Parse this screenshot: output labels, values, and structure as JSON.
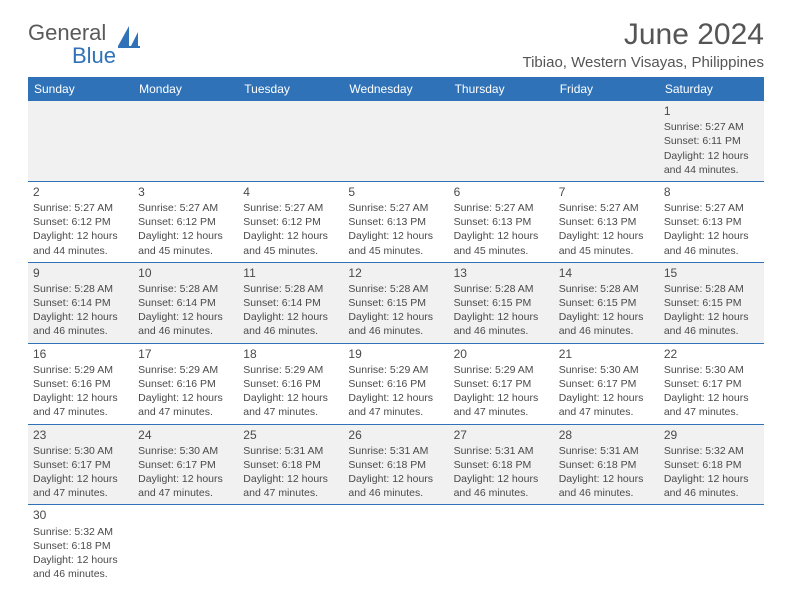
{
  "logo": {
    "word1": "General",
    "word2": "Blue"
  },
  "title": "June 2024",
  "location": "Tibiao, Western Visayas, Philippines",
  "colors": {
    "header_bg": "#2f72b8",
    "header_fg": "#ffffff",
    "row_alt_bg": "#f1f1f1",
    "row_bg": "#ffffff",
    "border": "#2f72b8",
    "text": "#4a4a4a"
  },
  "typography": {
    "title_fontsize": 30,
    "location_fontsize": 15,
    "header_fontsize": 12,
    "daynum_fontsize": 12,
    "body_fontsize": 10.5
  },
  "columns": [
    "Sunday",
    "Monday",
    "Tuesday",
    "Wednesday",
    "Thursday",
    "Friday",
    "Saturday"
  ],
  "weeks": [
    [
      null,
      null,
      null,
      null,
      null,
      null,
      {
        "n": "1",
        "sr": "Sunrise: 5:27 AM",
        "ss": "Sunset: 6:11 PM",
        "d1": "Daylight: 12 hours",
        "d2": "and 44 minutes."
      }
    ],
    [
      {
        "n": "2",
        "sr": "Sunrise: 5:27 AM",
        "ss": "Sunset: 6:12 PM",
        "d1": "Daylight: 12 hours",
        "d2": "and 44 minutes."
      },
      {
        "n": "3",
        "sr": "Sunrise: 5:27 AM",
        "ss": "Sunset: 6:12 PM",
        "d1": "Daylight: 12 hours",
        "d2": "and 45 minutes."
      },
      {
        "n": "4",
        "sr": "Sunrise: 5:27 AM",
        "ss": "Sunset: 6:12 PM",
        "d1": "Daylight: 12 hours",
        "d2": "and 45 minutes."
      },
      {
        "n": "5",
        "sr": "Sunrise: 5:27 AM",
        "ss": "Sunset: 6:13 PM",
        "d1": "Daylight: 12 hours",
        "d2": "and 45 minutes."
      },
      {
        "n": "6",
        "sr": "Sunrise: 5:27 AM",
        "ss": "Sunset: 6:13 PM",
        "d1": "Daylight: 12 hours",
        "d2": "and 45 minutes."
      },
      {
        "n": "7",
        "sr": "Sunrise: 5:27 AM",
        "ss": "Sunset: 6:13 PM",
        "d1": "Daylight: 12 hours",
        "d2": "and 45 minutes."
      },
      {
        "n": "8",
        "sr": "Sunrise: 5:27 AM",
        "ss": "Sunset: 6:13 PM",
        "d1": "Daylight: 12 hours",
        "d2": "and 46 minutes."
      }
    ],
    [
      {
        "n": "9",
        "sr": "Sunrise: 5:28 AM",
        "ss": "Sunset: 6:14 PM",
        "d1": "Daylight: 12 hours",
        "d2": "and 46 minutes."
      },
      {
        "n": "10",
        "sr": "Sunrise: 5:28 AM",
        "ss": "Sunset: 6:14 PM",
        "d1": "Daylight: 12 hours",
        "d2": "and 46 minutes."
      },
      {
        "n": "11",
        "sr": "Sunrise: 5:28 AM",
        "ss": "Sunset: 6:14 PM",
        "d1": "Daylight: 12 hours",
        "d2": "and 46 minutes."
      },
      {
        "n": "12",
        "sr": "Sunrise: 5:28 AM",
        "ss": "Sunset: 6:15 PM",
        "d1": "Daylight: 12 hours",
        "d2": "and 46 minutes."
      },
      {
        "n": "13",
        "sr": "Sunrise: 5:28 AM",
        "ss": "Sunset: 6:15 PM",
        "d1": "Daylight: 12 hours",
        "d2": "and 46 minutes."
      },
      {
        "n": "14",
        "sr": "Sunrise: 5:28 AM",
        "ss": "Sunset: 6:15 PM",
        "d1": "Daylight: 12 hours",
        "d2": "and 46 minutes."
      },
      {
        "n": "15",
        "sr": "Sunrise: 5:28 AM",
        "ss": "Sunset: 6:15 PM",
        "d1": "Daylight: 12 hours",
        "d2": "and 46 minutes."
      }
    ],
    [
      {
        "n": "16",
        "sr": "Sunrise: 5:29 AM",
        "ss": "Sunset: 6:16 PM",
        "d1": "Daylight: 12 hours",
        "d2": "and 47 minutes."
      },
      {
        "n": "17",
        "sr": "Sunrise: 5:29 AM",
        "ss": "Sunset: 6:16 PM",
        "d1": "Daylight: 12 hours",
        "d2": "and 47 minutes."
      },
      {
        "n": "18",
        "sr": "Sunrise: 5:29 AM",
        "ss": "Sunset: 6:16 PM",
        "d1": "Daylight: 12 hours",
        "d2": "and 47 minutes."
      },
      {
        "n": "19",
        "sr": "Sunrise: 5:29 AM",
        "ss": "Sunset: 6:16 PM",
        "d1": "Daylight: 12 hours",
        "d2": "and 47 minutes."
      },
      {
        "n": "20",
        "sr": "Sunrise: 5:29 AM",
        "ss": "Sunset: 6:17 PM",
        "d1": "Daylight: 12 hours",
        "d2": "and 47 minutes."
      },
      {
        "n": "21",
        "sr": "Sunrise: 5:30 AM",
        "ss": "Sunset: 6:17 PM",
        "d1": "Daylight: 12 hours",
        "d2": "and 47 minutes."
      },
      {
        "n": "22",
        "sr": "Sunrise: 5:30 AM",
        "ss": "Sunset: 6:17 PM",
        "d1": "Daylight: 12 hours",
        "d2": "and 47 minutes."
      }
    ],
    [
      {
        "n": "23",
        "sr": "Sunrise: 5:30 AM",
        "ss": "Sunset: 6:17 PM",
        "d1": "Daylight: 12 hours",
        "d2": "and 47 minutes."
      },
      {
        "n": "24",
        "sr": "Sunrise: 5:30 AM",
        "ss": "Sunset: 6:17 PM",
        "d1": "Daylight: 12 hours",
        "d2": "and 47 minutes."
      },
      {
        "n": "25",
        "sr": "Sunrise: 5:31 AM",
        "ss": "Sunset: 6:18 PM",
        "d1": "Daylight: 12 hours",
        "d2": "and 47 minutes."
      },
      {
        "n": "26",
        "sr": "Sunrise: 5:31 AM",
        "ss": "Sunset: 6:18 PM",
        "d1": "Daylight: 12 hours",
        "d2": "and 46 minutes."
      },
      {
        "n": "27",
        "sr": "Sunrise: 5:31 AM",
        "ss": "Sunset: 6:18 PM",
        "d1": "Daylight: 12 hours",
        "d2": "and 46 minutes."
      },
      {
        "n": "28",
        "sr": "Sunrise: 5:31 AM",
        "ss": "Sunset: 6:18 PM",
        "d1": "Daylight: 12 hours",
        "d2": "and 46 minutes."
      },
      {
        "n": "29",
        "sr": "Sunrise: 5:32 AM",
        "ss": "Sunset: 6:18 PM",
        "d1": "Daylight: 12 hours",
        "d2": "and 46 minutes."
      }
    ],
    [
      {
        "n": "30",
        "sr": "Sunrise: 5:32 AM",
        "ss": "Sunset: 6:18 PM",
        "d1": "Daylight: 12 hours",
        "d2": "and 46 minutes."
      },
      null,
      null,
      null,
      null,
      null,
      null
    ]
  ]
}
